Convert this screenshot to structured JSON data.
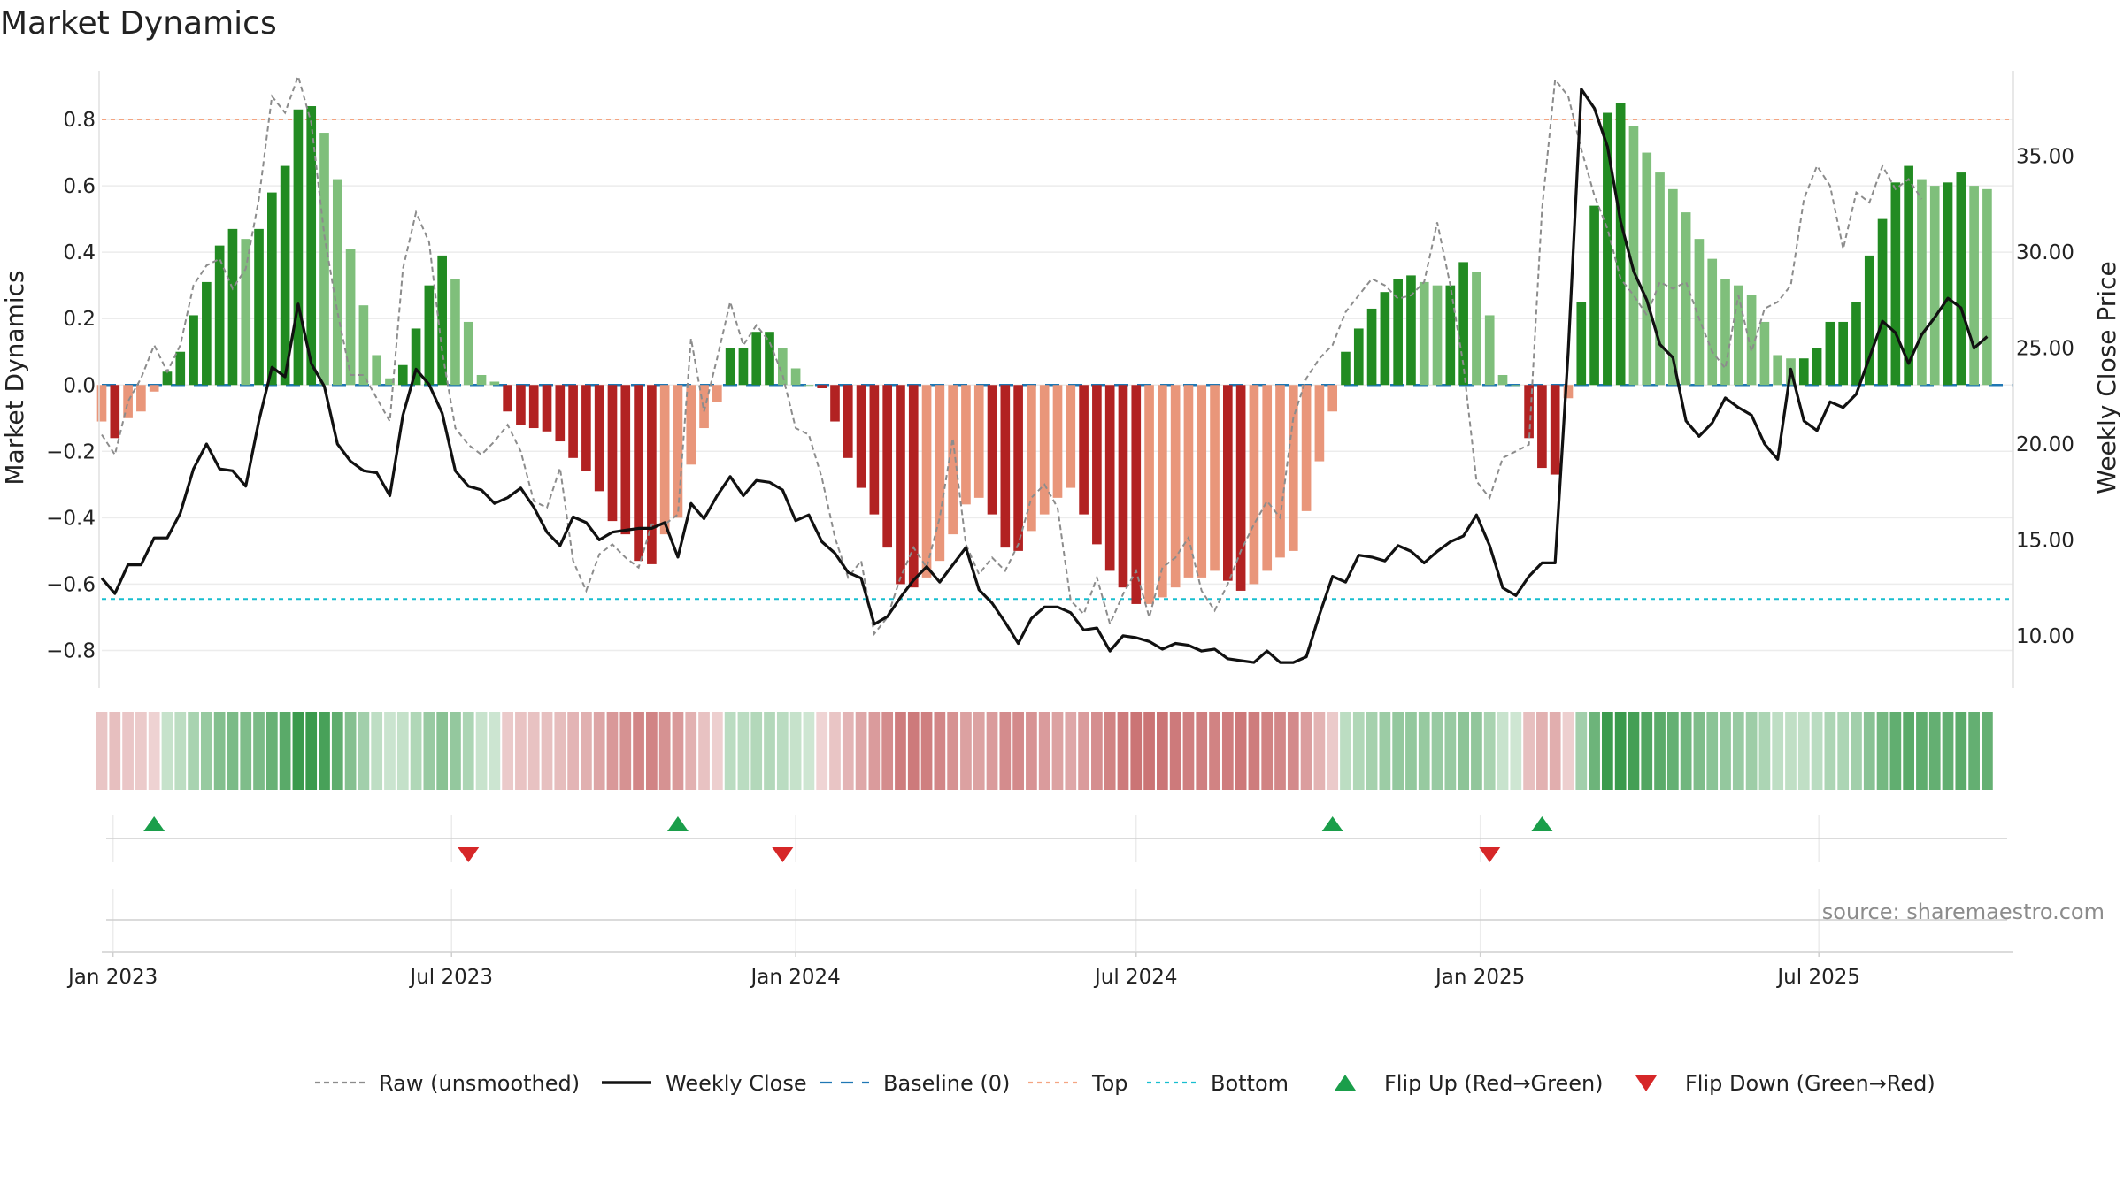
{
  "chart_data": {
    "type": "bar",
    "title": "Market Dynamics",
    "ylabel": "Market Dynamics",
    "y2label": "Weekly Close Price",
    "ylim": [
      -0.9,
      0.92
    ],
    "y2lim": [
      7.5,
      39.0
    ],
    "yticks": [
      -0.8,
      -0.6,
      -0.4,
      -0.2,
      0.0,
      0.2,
      0.4,
      0.6,
      0.8
    ],
    "y2ticks": [
      10.0,
      15.0,
      20.0,
      25.0,
      30.0,
      35.0
    ],
    "x_start": "2022-12-26",
    "x_end": "2025-10-13",
    "xticks": [
      {
        "label": "Jan 2023",
        "date": "2023-01-01"
      },
      {
        "label": "Jul 2023",
        "date": "2023-07-01"
      },
      {
        "label": "Jan 2024",
        "date": "2024-01-01"
      },
      {
        "label": "Jul 2024",
        "date": "2024-07-01"
      },
      {
        "label": "Jan 2025",
        "date": "2025-01-01"
      },
      {
        "label": "Jul 2025",
        "date": "2025-07-01"
      }
    ],
    "top_level": 0.8,
    "bottom_level": -0.645,
    "baseline": 0,
    "grid": true,
    "legend_position": "bottom-center",
    "bar_segments": [
      {
        "start": "2022-12-26",
        "values": [
          -0.11,
          -0.16,
          -0.1,
          -0.08,
          -0.02,
          0.04,
          0.1,
          0.21,
          0.31,
          0.42,
          0.47,
          0.44,
          0.47,
          0.58,
          0.66,
          0.83,
          0.84,
          0.76,
          0.62,
          0.41,
          0.24,
          0.09,
          0.02,
          0.06,
          0.17,
          0.3,
          0.39,
          0.32,
          0.19,
          0.03,
          0.01,
          -0.08,
          -0.12,
          -0.13,
          -0.14,
          -0.17,
          -0.22,
          -0.26,
          -0.32,
          -0.41,
          -0.45,
          -0.53,
          -0.54,
          -0.45,
          -0.4,
          -0.24,
          -0.13,
          -0.05,
          0.11,
          0.11,
          0.16,
          0.16,
          0.11,
          0.05,
          0.0,
          -0.01,
          -0.11,
          -0.22,
          -0.31,
          -0.39,
          -0.49,
          -0.6
        ]
      },
      {
        "start": "2024-03-04",
        "values": [
          -0.61,
          -0.58,
          -0.53,
          -0.45,
          -0.36,
          -0.34,
          -0.39,
          -0.49,
          -0.5,
          -0.44,
          -0.39,
          -0.34,
          -0.31,
          -0.39,
          -0.48,
          -0.56,
          -0.61,
          -0.66,
          -0.66,
          -0.64,
          -0.61,
          -0.58,
          -0.58,
          -0.56,
          -0.59,
          -0.62,
          -0.6,
          -0.56,
          -0.52,
          -0.5,
          -0.38,
          -0.23,
          -0.08,
          0.1,
          0.17,
          0.23,
          0.28,
          0.32,
          0.33,
          0.31,
          0.3,
          0.3,
          0.37,
          0.34,
          0.21,
          0.03,
          0.0,
          -0.16,
          -0.25,
          -0.27,
          -0.04,
          0.25,
          0.54,
          0.82,
          0.85,
          0.78,
          0.7,
          0.64,
          0.59,
          0.52,
          0.44,
          0.38,
          0.32,
          0.3,
          0.27,
          0.19,
          0.09,
          0.08,
          0.08,
          0.11,
          0.19,
          0.19,
          0.25,
          0.39,
          0.5,
          0.61,
          0.66,
          0.62,
          0.6,
          0.61,
          0.64,
          0.6,
          0.59
        ]
      }
    ],
    "close_series": [
      {
        "start": "2022-12-26",
        "values": [
          13.0,
          12.2,
          13.7,
          13.7,
          15.1,
          15.1,
          16.4,
          18.7,
          20.0,
          18.7,
          18.6,
          17.8,
          21.2,
          24.0,
          23.5,
          27.3,
          24.2,
          23.0,
          20.0,
          19.1,
          18.6,
          18.5,
          17.3,
          21.5,
          23.9,
          23.1,
          21.6,
          18.6,
          17.8,
          17.6,
          16.9,
          17.2,
          17.7,
          16.7,
          15.4,
          14.7,
          16.2,
          15.9,
          15.0,
          15.4,
          15.5,
          15.6,
          15.6,
          15.9,
          14.1,
          16.9,
          16.1,
          17.3,
          18.3,
          17.3,
          18.1,
          18.0,
          17.6,
          16.0,
          16.3,
          14.9,
          14.3,
          13.3,
          13.0,
          10.6,
          11.0,
          12.0,
          12.9,
          13.6,
          12.8,
          13.7,
          14.6,
          12.4,
          11.7,
          10.7,
          9.6,
          10.9,
          11.5,
          11.5,
          11.2,
          10.3,
          10.4,
          9.2,
          10.0,
          9.9,
          9.7,
          9.3,
          9.6,
          9.5,
          9.2,
          9.3,
          8.8,
          8.7,
          8.6,
          9.2,
          8.6,
          8.6,
          8.9,
          11.1,
          13.1,
          12.8,
          14.2,
          14.1,
          13.9,
          14.7,
          14.4,
          13.8,
          14.4,
          14.9,
          15.2,
          16.3,
          14.7,
          12.5,
          12.1,
          13.1,
          13.8,
          13.8,
          24.8,
          38.5,
          37.5,
          35.5,
          31.6,
          29.0,
          27.5,
          25.2,
          24.5,
          21.2,
          20.4,
          21.1,
          22.4,
          21.9,
          21.5,
          20.0,
          19.2,
          23.9,
          21.2,
          20.7,
          22.2,
          21.9,
          22.6,
          24.5,
          26.4,
          25.8,
          24.2,
          25.7,
          26.6,
          27.6,
          27.1,
          25.0,
          25.6
        ]
      }
    ],
    "raw_series": [
      {
        "start": "2022-12-26",
        "values": [
          -0.15,
          -0.21,
          -0.05,
          0.02,
          0.12,
          0.04,
          0.12,
          0.3,
          0.36,
          0.38,
          0.29,
          0.35,
          0.56,
          0.87,
          0.82,
          0.93,
          0.79,
          0.45,
          0.22,
          0.03,
          0.03,
          -0.04,
          -0.11,
          0.35,
          0.52,
          0.43,
          0.1,
          -0.13,
          -0.18,
          -0.21,
          -0.17,
          -0.12,
          -0.2,
          -0.35,
          -0.37,
          -0.25,
          -0.53,
          -0.62,
          -0.51,
          -0.48,
          -0.52,
          -0.55,
          -0.42,
          -0.42,
          -0.39,
          0.14,
          -0.08,
          0.08,
          0.25,
          0.12,
          0.18,
          0.13,
          0.03,
          -0.13,
          -0.15,
          -0.28,
          -0.46,
          -0.58,
          -0.53,
          -0.75,
          -0.7,
          -0.58,
          -0.49,
          -0.55,
          -0.4,
          -0.16,
          -0.48,
          -0.57,
          -0.52,
          -0.56,
          -0.48,
          -0.34,
          -0.3,
          -0.37,
          -0.65,
          -0.69,
          -0.58,
          -0.72,
          -0.63,
          -0.56,
          -0.7,
          -0.55,
          -0.52,
          -0.46,
          -0.62,
          -0.68,
          -0.6,
          -0.5,
          -0.42,
          -0.35,
          -0.4,
          -0.1,
          0.02,
          0.08,
          0.12,
          0.22,
          0.27,
          0.32,
          0.3,
          0.26,
          0.27,
          0.31,
          0.49,
          0.3,
          0.06,
          -0.29,
          -0.34,
          -0.22,
          -0.2,
          -0.18,
          0.53,
          0.92,
          0.87,
          0.71,
          0.57,
          0.47,
          0.32,
          0.27,
          0.21,
          0.31,
          0.29,
          0.31,
          0.2,
          0.1,
          0.05,
          0.27,
          0.1,
          0.23,
          0.25,
          0.3,
          0.56,
          0.66,
          0.6,
          0.41,
          0.58,
          0.55,
          0.66,
          0.59,
          0.62,
          0.56
        ]
      }
    ],
    "regime_strip": [
      {
        "start": "2022-12-26",
        "values": [
          -0.11,
          -0.16,
          -0.1,
          -0.08,
          -0.02,
          0.04,
          0.1,
          0.21,
          0.31,
          0.42,
          0.47,
          0.44,
          0.47,
          0.58,
          0.66,
          0.83,
          0.84,
          0.76,
          0.62,
          0.41,
          0.24,
          0.09,
          0.02,
          0.06,
          0.17,
          0.3,
          0.39,
          0.32,
          0.19,
          0.03,
          0.01,
          -0.08,
          -0.12,
          -0.13,
          -0.14,
          -0.17,
          -0.22,
          -0.26,
          -0.32,
          -0.41,
          -0.45,
          -0.53,
          -0.54,
          -0.45,
          -0.4,
          -0.24,
          -0.13,
          -0.05,
          0.11,
          0.11,
          0.16,
          0.16,
          0.11,
          0.05,
          0.0,
          -0.01,
          -0.11,
          -0.22,
          -0.31,
          -0.39,
          -0.49,
          -0.6
        ]
      },
      {
        "start": "2024-03-04",
        "values": [
          -0.61,
          -0.58,
          -0.53,
          -0.45,
          -0.36,
          -0.34,
          -0.39,
          -0.49,
          -0.5,
          -0.44,
          -0.39,
          -0.34,
          -0.31,
          -0.39,
          -0.48,
          -0.56,
          -0.61,
          -0.66,
          -0.66,
          -0.64,
          -0.61,
          -0.58,
          -0.58,
          -0.56,
          -0.59,
          -0.62,
          -0.6,
          -0.56,
          -0.52,
          -0.5,
          -0.38,
          -0.23,
          -0.08,
          0.1,
          0.17,
          0.23,
          0.28,
          0.32,
          0.33,
          0.31,
          0.3,
          0.3,
          0.37,
          0.34,
          0.21,
          0.03,
          0.0,
          -0.16,
          -0.25,
          -0.27,
          -0.04,
          0.25,
          0.54,
          0.82,
          0.85,
          0.78,
          0.7,
          0.64,
          0.59,
          0.52,
          0.44,
          0.38,
          0.32,
          0.3,
          0.27,
          0.19,
          0.09,
          0.08,
          0.08,
          0.11,
          0.19,
          0.19,
          0.25,
          0.39,
          0.5,
          0.61,
          0.66,
          0.62,
          0.6,
          0.61,
          0.64,
          0.6,
          0.59
        ]
      }
    ],
    "flip_up_dates": [
      "2023-01-23",
      "2023-10-30",
      "2024-10-14",
      "2025-02-03"
    ],
    "flip_down_dates": [
      "2023-07-10",
      "2023-12-25",
      "2025-01-06"
    ],
    "legend": [
      {
        "label": "Raw (unsmoothed)",
        "style": "dashed-line",
        "color": "#8c8c8c"
      },
      {
        "label": "Weekly Close",
        "style": "solid-line",
        "color": "#111111"
      },
      {
        "label": "Baseline (0)",
        "style": "dashed-line",
        "color": "#1f77b4"
      },
      {
        "label": "Top",
        "style": "dotted-line",
        "color": "#f4a582"
      },
      {
        "label": "Bottom",
        "style": "dotted-line",
        "color": "#17becf"
      },
      {
        "label": "Flip Up (Red→Green)",
        "style": "triangle-up",
        "color": "#1a9e4a"
      },
      {
        "label": "Flip Down (Green→Red)",
        "style": "triangle-down",
        "color": "#d62728"
      }
    ],
    "source": "source: sharemaestro.com",
    "colors": {
      "green_strong": "#228b22",
      "green_light": "#7fbf7b",
      "red_strong": "#b22222",
      "red_light": "#e9967a",
      "top_line": "#f4a582",
      "bottom_line": "#17becf",
      "baseline": "#1f77b4",
      "close_line": "#111111",
      "raw_line": "#8c8c8c",
      "flip_up": "#1a9e4a",
      "flip_down": "#d62728"
    }
  }
}
